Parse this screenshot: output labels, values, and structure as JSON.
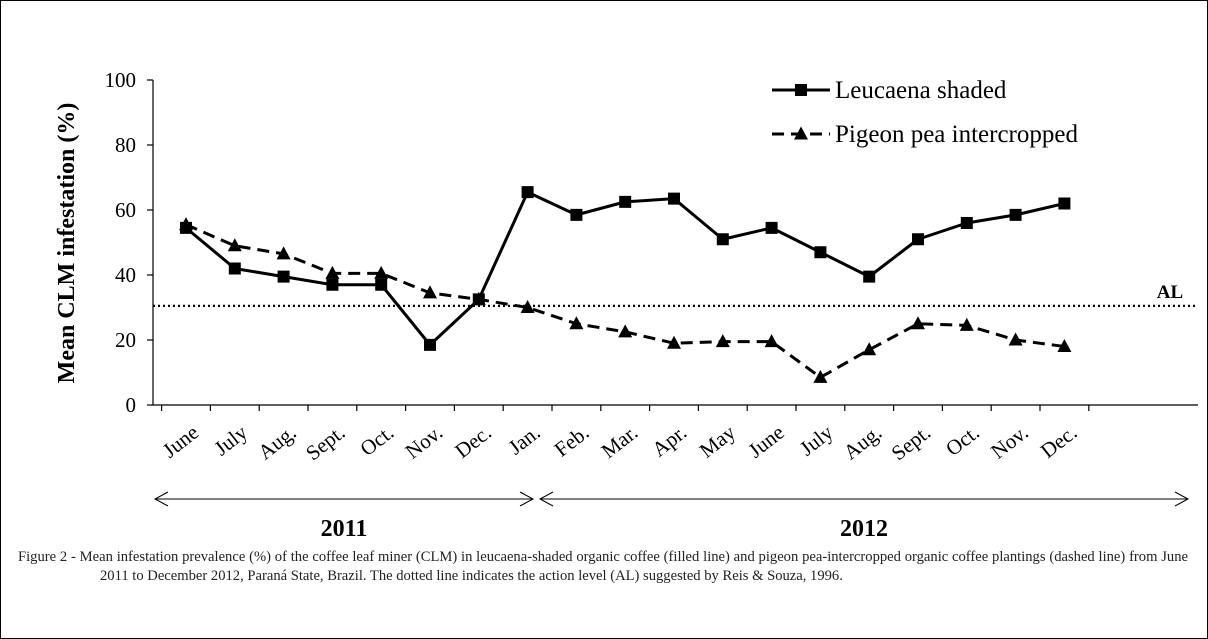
{
  "chart_data": {
    "type": "line",
    "ylabel": "Mean CLM infestation (%)",
    "ylim": [
      0,
      100
    ],
    "yticks": [
      0,
      20,
      40,
      60,
      80,
      100
    ],
    "categories": [
      "June",
      "July",
      "Aug.",
      "Sept.",
      "Oct.",
      "Nov.",
      "Dec.",
      "Jan.",
      "Feb.",
      "Mar.",
      "Apr.",
      "May",
      "June",
      "July",
      "Aug.",
      "Sept.",
      "Oct.",
      "Nov.",
      "Dec."
    ],
    "years": [
      {
        "label": "2011",
        "start_index": 0,
        "end_index": 6
      },
      {
        "label": "2012",
        "start_index": 7,
        "end_index": 18
      }
    ],
    "series": [
      {
        "name": "Leucaena shaded",
        "style": "solid",
        "marker": "square",
        "values": [
          54.5,
          42,
          39.5,
          37,
          37,
          18.5,
          32.5,
          65.5,
          58.5,
          62.5,
          63.5,
          51,
          54.5,
          47,
          39.5,
          51,
          56,
          58.5,
          62
        ]
      },
      {
        "name": "Pigeon pea intercropped",
        "style": "dashed",
        "marker": "triangle",
        "values": [
          55.5,
          49,
          46.5,
          40.5,
          40.5,
          34.5,
          32.5,
          30,
          25,
          22.5,
          19,
          19.5,
          19.5,
          8.5,
          17,
          25,
          24.5,
          20,
          18
        ]
      }
    ],
    "reference_line": {
      "label": "AL",
      "value": 30.5,
      "style": "dotted"
    },
    "legend_position": "top-right",
    "grid": false
  },
  "caption": {
    "line1": "Figure 2 - Mean infestation prevalence (%) of the coffee leaf miner (CLM) in leucaena-shaded organic coffee (filled line) and pigeon pea-intercropped organic coffee plantings (dashed line) from June 2011 to December 2012, Paraná State, Brazil. The dotted line indicates the action level (AL) suggested by Reis & Souza, 1996."
  }
}
